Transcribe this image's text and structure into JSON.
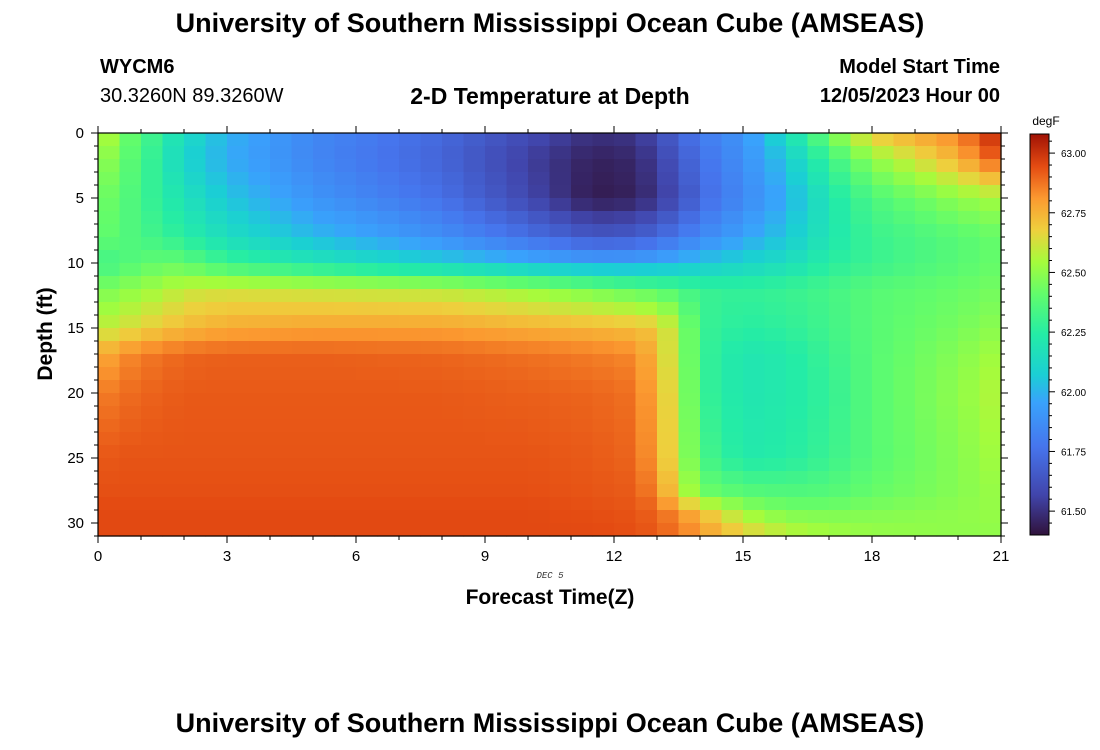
{
  "header": {
    "title_top": "University of Southern Mississippi Ocean Cube (AMSEAS)",
    "title_bottom": "University of Southern Mississippi Ocean Cube (AMSEAS)",
    "station": "WYCM6",
    "coords": "30.3260N  89.3260W",
    "subtitle": "2-D Temperature at Depth",
    "model_start_label": "Model Start Time",
    "model_start_value": "12/05/2023 Hour 00"
  },
  "chart_data": {
    "type": "heatmap",
    "xlabel": "Forecast Time(Z)",
    "ylabel": "Depth (ft)",
    "date_annotation": "DEC 5",
    "xlim": [
      0,
      21
    ],
    "ylim": [
      0,
      31
    ],
    "xticks": [
      "0",
      "3",
      "6",
      "9",
      "12",
      "15",
      "18",
      "21"
    ],
    "yticks": [
      "0",
      "5",
      "10",
      "15",
      "20",
      "25",
      "30"
    ],
    "colorbar_unit": "degF",
    "colorbar_ticks": [
      "63.00",
      "62.75",
      "62.50",
      "62.25",
      "62.00",
      "61.75",
      "61.50"
    ],
    "colorbar_range": [
      61.4,
      63.08
    ],
    "grid": false,
    "time_columns": 42,
    "depth_levels": 31,
    "time_anchors": [
      0,
      0.5,
      1,
      1.5,
      2,
      3,
      5,
      8,
      10,
      11.5,
      12.5,
      13,
      13.5,
      14,
      15,
      16,
      17,
      18,
      20,
      21
    ],
    "depth_anchors": [
      0,
      2,
      5,
      8,
      10,
      12,
      15,
      17,
      20,
      25,
      28,
      29,
      31
    ],
    "temperature_degF_grid": [
      [
        62.65,
        62.45,
        62.38,
        62.25,
        62.15,
        62.0,
        61.85,
        61.72,
        61.6,
        61.5,
        61.52,
        61.6,
        61.7,
        61.8,
        61.9,
        62.15,
        62.45,
        62.7,
        62.85,
        63.05
      ],
      [
        62.55,
        62.42,
        62.35,
        62.22,
        62.1,
        61.98,
        61.84,
        61.7,
        61.55,
        61.45,
        61.47,
        61.55,
        61.65,
        61.75,
        61.88,
        62.05,
        62.3,
        62.5,
        62.75,
        62.95
      ],
      [
        62.45,
        62.4,
        62.32,
        62.25,
        62.18,
        62.05,
        61.9,
        61.75,
        61.58,
        61.43,
        61.45,
        61.52,
        61.6,
        61.72,
        61.85,
        61.98,
        62.2,
        62.35,
        62.5,
        62.55
      ],
      [
        62.42,
        62.38,
        62.34,
        62.3,
        62.25,
        62.15,
        62.02,
        61.88,
        61.75,
        61.65,
        61.67,
        61.72,
        61.78,
        61.85,
        61.95,
        62.05,
        62.2,
        62.3,
        62.38,
        62.42
      ],
      [
        62.3,
        62.35,
        62.38,
        62.42,
        62.4,
        62.3,
        62.2,
        62.08,
        62.0,
        61.95,
        61.95,
        61.98,
        62.0,
        62.05,
        62.1,
        62.15,
        62.25,
        62.3,
        62.38,
        62.42
      ],
      [
        62.45,
        62.48,
        62.52,
        62.55,
        62.6,
        62.62,
        62.6,
        62.58,
        62.52,
        62.45,
        62.4,
        62.38,
        62.35,
        62.3,
        62.28,
        62.3,
        62.33,
        62.38,
        62.42,
        62.45
      ],
      [
        62.58,
        62.62,
        62.66,
        62.7,
        62.73,
        62.77,
        62.79,
        62.79,
        62.76,
        62.74,
        62.72,
        62.7,
        62.55,
        62.3,
        62.25,
        62.27,
        62.32,
        62.38,
        62.45,
        62.5
      ],
      [
        62.75,
        62.82,
        62.86,
        62.88,
        62.9,
        62.91,
        62.91,
        62.9,
        62.88,
        62.86,
        62.84,
        62.72,
        62.55,
        62.3,
        62.2,
        62.22,
        62.3,
        62.38,
        62.48,
        62.55
      ],
      [
        62.85,
        62.88,
        62.9,
        62.91,
        62.92,
        62.92,
        62.92,
        62.92,
        62.91,
        62.9,
        62.88,
        62.75,
        62.58,
        62.3,
        62.2,
        62.22,
        62.28,
        62.38,
        62.5,
        62.58
      ],
      [
        62.92,
        62.93,
        62.93,
        62.93,
        62.93,
        62.93,
        62.93,
        62.93,
        62.93,
        62.92,
        62.9,
        62.78,
        62.58,
        62.35,
        62.22,
        62.24,
        62.3,
        62.38,
        62.48,
        62.55
      ],
      [
        62.94,
        62.94,
        62.94,
        62.94,
        62.94,
        62.94,
        62.94,
        62.94,
        62.94,
        62.93,
        62.92,
        62.85,
        62.65,
        62.45,
        62.4,
        62.38,
        62.38,
        62.42,
        62.48,
        62.52
      ],
      [
        62.95,
        62.95,
        62.95,
        62.95,
        62.95,
        62.95,
        62.95,
        62.95,
        62.95,
        62.94,
        62.93,
        62.9,
        62.82,
        62.72,
        62.52,
        62.45,
        62.45,
        62.47,
        62.5,
        62.52
      ],
      [
        62.95,
        62.95,
        62.95,
        62.95,
        62.95,
        62.95,
        62.95,
        62.95,
        62.95,
        62.95,
        62.94,
        62.92,
        62.88,
        62.82,
        62.7,
        62.6,
        62.55,
        62.52,
        62.5,
        62.5
      ]
    ]
  }
}
